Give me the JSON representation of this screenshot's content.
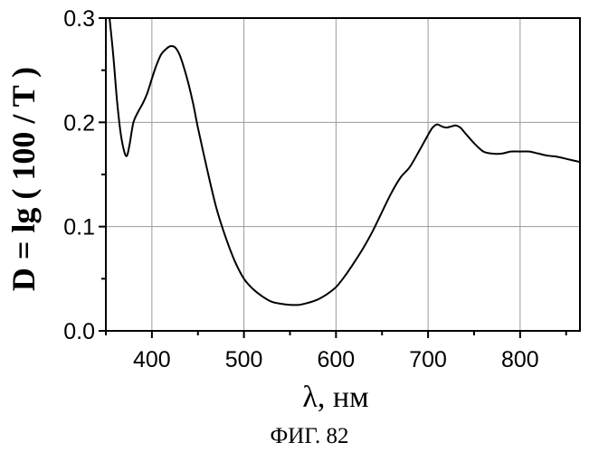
{
  "chart_data": {
    "type": "line",
    "title": "",
    "xlabel": "λ, нм",
    "ylabel": "D = lg ( 100 / T )",
    "caption": "ФИГ. 82",
    "xlim": [
      350,
      865
    ],
    "ylim": [
      0.0,
      0.3
    ],
    "x_ticks": [
      400,
      500,
      600,
      700,
      800
    ],
    "x_tick_labels": [
      "400",
      "500",
      "600",
      "700",
      "800"
    ],
    "y_ticks": [
      0.0,
      0.1,
      0.2,
      0.3
    ],
    "y_tick_labels": [
      "0.0",
      "0.1",
      "0.2",
      "0.3"
    ],
    "grid": true,
    "series": [
      {
        "x": [
          354,
          358,
          362,
          366,
          370,
          373,
          376,
          380,
          385,
          390,
          395,
          400,
          405,
          410,
          415,
          420,
          425,
          430,
          435,
          440,
          445,
          450,
          460,
          470,
          480,
          490,
          500,
          510,
          520,
          530,
          540,
          550,
          560,
          570,
          580,
          590,
          600,
          610,
          620,
          630,
          640,
          650,
          660,
          670,
          680,
          690,
          700,
          705,
          710,
          715,
          720,
          725,
          730,
          735,
          740,
          750,
          760,
          770,
          780,
          790,
          800,
          810,
          820,
          830,
          840,
          850,
          865
        ],
        "y": [
          0.3,
          0.265,
          0.222,
          0.19,
          0.172,
          0.168,
          0.18,
          0.2,
          0.21,
          0.218,
          0.228,
          0.242,
          0.255,
          0.265,
          0.27,
          0.273,
          0.272,
          0.265,
          0.252,
          0.236,
          0.217,
          0.195,
          0.155,
          0.118,
          0.09,
          0.067,
          0.05,
          0.04,
          0.033,
          0.028,
          0.026,
          0.025,
          0.025,
          0.027,
          0.03,
          0.035,
          0.042,
          0.053,
          0.066,
          0.08,
          0.096,
          0.114,
          0.132,
          0.147,
          0.157,
          0.172,
          0.188,
          0.195,
          0.198,
          0.196,
          0.195,
          0.196,
          0.197,
          0.195,
          0.19,
          0.18,
          0.172,
          0.17,
          0.17,
          0.172,
          0.172,
          0.172,
          0.17,
          0.168,
          0.167,
          0.165,
          0.162
        ]
      }
    ]
  }
}
